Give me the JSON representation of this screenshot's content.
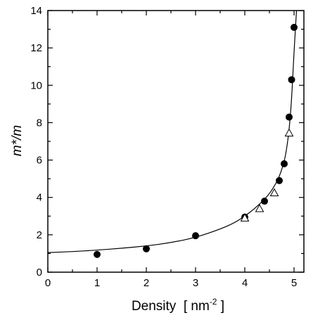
{
  "chart_data": {
    "type": "scatter",
    "xlabel": "Density",
    "xlabel_unit_prefix": "[ nm",
    "xlabel_unit_exp": "-2",
    "xlabel_unit_suffix": " ]",
    "ylabel": "m*/m",
    "xlim": [
      0,
      5.2
    ],
    "ylim": [
      0,
      14
    ],
    "xticks": [
      0,
      1,
      2,
      3,
      4,
      5
    ],
    "yticks": [
      0,
      2,
      4,
      6,
      8,
      10,
      12,
      14
    ],
    "grid": false,
    "series": [
      {
        "marker": "filled-circle",
        "x": [
          1.0,
          2.0,
          3.0,
          4.0,
          4.4,
          4.7,
          4.8,
          4.9,
          4.95,
          5.0
        ],
        "y": [
          0.95,
          1.25,
          1.95,
          2.95,
          3.8,
          4.9,
          5.8,
          8.3,
          10.3,
          13.1
        ]
      },
      {
        "marker": "open-triangle",
        "x": [
          4.0,
          4.3,
          4.6,
          4.9
        ],
        "y": [
          2.9,
          3.4,
          4.25,
          7.45
        ]
      },
      {
        "marker": "line",
        "x": [
          0,
          0.5,
          1.0,
          1.5,
          2.0,
          2.5,
          3.0,
          3.5,
          3.8,
          4.0,
          4.2,
          4.4,
          4.5,
          4.6,
          4.7,
          4.8,
          4.85,
          4.9,
          4.95,
          5.0,
          5.05
        ],
        "y": [
          1.05,
          1.1,
          1.18,
          1.28,
          1.4,
          1.58,
          1.85,
          2.3,
          2.65,
          3.0,
          3.4,
          3.9,
          4.2,
          4.6,
          5.1,
          5.9,
          6.6,
          7.6,
          9.2,
          11.8,
          14.0
        ]
      }
    ]
  }
}
